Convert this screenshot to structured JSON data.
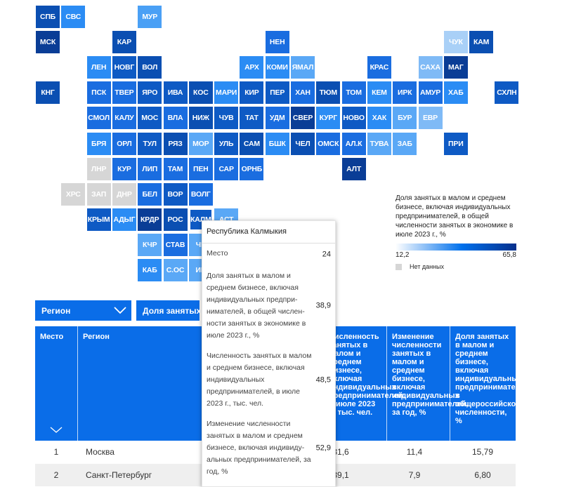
{
  "map": {
    "tiles": [
      {
        "label": "СПБ",
        "color": "#0b4fb2",
        "selected": false
      },
      {
        "label": "СВС",
        "color": "#2b8cf4",
        "selected": false
      },
      {
        "label": "МУР",
        "color": "#4aa0f5",
        "selected": false
      },
      {
        "label": "МСК",
        "color": "#0a3d96",
        "selected": false
      },
      {
        "label": "КАР",
        "color": "#0b4fb2",
        "selected": false
      },
      {
        "label": "НЕН",
        "color": "#1a6de0",
        "selected": false
      },
      {
        "label": "ЧУК",
        "color": "#a9d0f7",
        "selected": false
      },
      {
        "label": "КАМ",
        "color": "#0b4fb2",
        "selected": false
      },
      {
        "label": "ЛЕН",
        "color": "#2b8cf4",
        "selected": false
      },
      {
        "label": "НОВГ",
        "color": "#0e5ac4",
        "selected": false
      },
      {
        "label": "ВОЛ",
        "color": "#0b4fb2",
        "selected": false
      },
      {
        "label": "АРХ",
        "color": "#2b8cf4",
        "selected": false
      },
      {
        "label": "КОМИ",
        "color": "#2b8cf4",
        "selected": false
      },
      {
        "label": "ЯМАЛ",
        "color": "#5aa8f6",
        "selected": false
      },
      {
        "label": "КРАС",
        "color": "#1a6de0",
        "selected": false
      },
      {
        "label": "САХА",
        "color": "#7fbaf6",
        "selected": false
      },
      {
        "label": "МАГ",
        "color": "#0a3d96",
        "selected": false
      },
      {
        "label": "КНГ",
        "color": "#0b4fb2",
        "selected": false
      },
      {
        "label": "ПСК",
        "color": "#1a6de0",
        "selected": false
      },
      {
        "label": "ТВЕР",
        "color": "#1a6de0",
        "selected": false
      },
      {
        "label": "ЯРО",
        "color": "#0e5ac4",
        "selected": false
      },
      {
        "label": "ИВА",
        "color": "#0e5ac4",
        "selected": false
      },
      {
        "label": "КОС",
        "color": "#0b4fb2",
        "selected": false
      },
      {
        "label": "МАРИ",
        "color": "#2b8cf4",
        "selected": false
      },
      {
        "label": "КИР",
        "color": "#0e5ac4",
        "selected": false
      },
      {
        "label": "ПЕР",
        "color": "#0e5ac4",
        "selected": false
      },
      {
        "label": "ХАН",
        "color": "#1a6de0",
        "selected": false
      },
      {
        "label": "ТЮМ",
        "color": "#0b4fb2",
        "selected": false
      },
      {
        "label": "ТОМ",
        "color": "#1a6de0",
        "selected": false
      },
      {
        "label": "КЕМ",
        "color": "#2b8cf4",
        "selected": false
      },
      {
        "label": "ИРК",
        "color": "#1a6de0",
        "selected": false
      },
      {
        "label": "АМУР",
        "color": "#1a6de0",
        "selected": false
      },
      {
        "label": "ХАБ",
        "color": "#2b8cf4",
        "selected": false
      },
      {
        "label": "СХЛН",
        "color": "#0e5ac4",
        "selected": false
      },
      {
        "label": "СМОЛ",
        "color": "#1a6de0",
        "selected": false
      },
      {
        "label": "КАЛУ",
        "color": "#1a6de0",
        "selected": false
      },
      {
        "label": "МОС",
        "color": "#0e5ac4",
        "selected": false
      },
      {
        "label": "ВЛА",
        "color": "#1a6de0",
        "selected": false
      },
      {
        "label": "НИЖ",
        "color": "#0b4fb2",
        "selected": false
      },
      {
        "label": "ЧУВ",
        "color": "#0e5ac4",
        "selected": false
      },
      {
        "label": "ТАТ",
        "color": "#0e5ac4",
        "selected": false
      },
      {
        "label": "УДМ",
        "color": "#1a6de0",
        "selected": false
      },
      {
        "label": "СВЕР",
        "color": "#0a3d96",
        "selected": false
      },
      {
        "label": "КУРГ",
        "color": "#2b8cf4",
        "selected": false
      },
      {
        "label": "НОВО",
        "color": "#0e5ac4",
        "selected": false
      },
      {
        "label": "ХАК",
        "color": "#2b8cf4",
        "selected": false
      },
      {
        "label": "БУР",
        "color": "#5aa8f6",
        "selected": false
      },
      {
        "label": "ЕВР",
        "color": "#7fbaf6",
        "selected": false
      },
      {
        "label": "БРЯ",
        "color": "#2b8cf4",
        "selected": false
      },
      {
        "label": "ОРЛ",
        "color": "#1a6de0",
        "selected": false
      },
      {
        "label": "ТУЛ",
        "color": "#0e5ac4",
        "selected": false
      },
      {
        "label": "РЯЗ",
        "color": "#0b4fb2",
        "selected": false
      },
      {
        "label": "МОР",
        "color": "#5aa8f6",
        "selected": false
      },
      {
        "label": "УЛЬ",
        "color": "#0e5ac4",
        "selected": false
      },
      {
        "label": "САМ",
        "color": "#0b4fb2",
        "selected": false
      },
      {
        "label": "БШК",
        "color": "#2b8cf4",
        "selected": false
      },
      {
        "label": "ЧЕЛ",
        "color": "#0b4fb2",
        "selected": false
      },
      {
        "label": "ОМСК",
        "color": "#1a6de0",
        "selected": false
      },
      {
        "label": "АЛ.К",
        "color": "#1a6de0",
        "selected": false
      },
      {
        "label": "ТУВА",
        "color": "#5aa8f6",
        "selected": false
      },
      {
        "label": "ЗАБ",
        "color": "#5aa8f6",
        "selected": false
      },
      {
        "label": "ПРИ",
        "color": "#0e5ac4",
        "selected": false
      },
      {
        "label": "ЛНР",
        "color": "#d6d6d6",
        "selected": false
      },
      {
        "label": "КУР",
        "color": "#1a6de0",
        "selected": false
      },
      {
        "label": "ЛИП",
        "color": "#1a6de0",
        "selected": false
      },
      {
        "label": "ТАМ",
        "color": "#1a6de0",
        "selected": false
      },
      {
        "label": "ПЕН",
        "color": "#1a6de0",
        "selected": false
      },
      {
        "label": "САР",
        "color": "#1a6de0",
        "selected": false
      },
      {
        "label": "ОРНБ",
        "color": "#1a6de0",
        "selected": false
      },
      {
        "label": "АЛТ",
        "color": "#0a3d96",
        "selected": false
      },
      {
        "label": "ХРС",
        "color": "#d6d6d6",
        "selected": false
      },
      {
        "label": "ЗАП",
        "color": "#d6d6d6",
        "selected": false
      },
      {
        "label": "ДНР",
        "color": "#d6d6d6",
        "selected": false
      },
      {
        "label": "БЕЛ",
        "color": "#1a6de0",
        "selected": false
      },
      {
        "label": "ВОР",
        "color": "#0e5ac4",
        "selected": false
      },
      {
        "label": "ВОЛГ",
        "color": "#1a6de0",
        "selected": false
      },
      {
        "label": "КРЫМ",
        "color": "#0e5ac4",
        "selected": false
      },
      {
        "label": "АДЫГ",
        "color": "#2b8cf4",
        "selected": false
      },
      {
        "label": "КРДР",
        "color": "#0a3d96",
        "selected": false
      },
      {
        "label": "РОС",
        "color": "#0b4fb2",
        "selected": false
      },
      {
        "label": "КАЛМ",
        "color": "#0e5ac4",
        "selected": true
      },
      {
        "label": "АСТ",
        "color": "#5aa8f6",
        "selected": false
      },
      {
        "label": "КЧР",
        "color": "#5aa8f6",
        "selected": false
      },
      {
        "label": "СТАВ",
        "color": "#1a6de0",
        "selected": false
      },
      {
        "label": "ЧЕ",
        "color": "#5aa8f6",
        "selected": false
      },
      {
        "label": "КАБ",
        "color": "#2b8cf4",
        "selected": false
      },
      {
        "label": "С.ОС",
        "color": "#5aa8f6",
        "selected": false
      },
      {
        "label": "ИН",
        "color": "#5aa8f6",
        "selected": false
      }
    ]
  },
  "legend": {
    "title": "Доля занятых в малом и среднем бизнесе, включая индивидуальных предпринимателей, в общей численности занятых в экономике в июле 2023 г., %",
    "min": "12,2",
    "max": "65,8",
    "nodata": "Нет данных",
    "nodata_color": "#d6d6d6"
  },
  "controls": {
    "region_label": "Регион",
    "metric_label": "Доля занятых в м"
  },
  "table": {
    "headers": [
      "Место",
      "Регион",
      "Численность занятых в малом и среднем бизнесе, включая индивидуальных предпринимателей, в июле 2023 г., тыс. чел.",
      "Изменение численности занятых в малом и среднем бизнесе, включая индивидуальных предпринимателей, за год, %",
      "Доля занятых в малом и среднем бизнесе, включая индивидуальных предпринимателей, в общероссийской численности, %"
    ],
    "rows": [
      {
        "rank": "1",
        "region": "Москва",
        "v1": "4731,6",
        "v2": "11,4",
        "v3": "15,79"
      },
      {
        "rank": "2",
        "region": "Санкт-Петербург",
        "v1": "2039,1",
        "v2": "7,9",
        "v3": "6,80"
      }
    ]
  },
  "tooltip": {
    "title": "Республика Калмыкия",
    "rows": [
      {
        "label": "Место",
        "value": "24"
      },
      {
        "label": "Доля занятых в малом и среднем бизнесе, включая индивидуальных предпри­нимателей, в общей числен­ности занятых в экономике в июле 2023 г., %",
        "value": "38,9"
      },
      {
        "label": "Численность занятых в ма­лом и среднем бизнесе, включая индивидуальных предпринимателей, в июле 2023 г., тыс. чел.",
        "value": "48,5"
      },
      {
        "label": "Изменение численности занятых в малом и среднем бизнесе, включая индивиду­альных предпринимателей, за год, %",
        "value": "52,9"
      }
    ]
  },
  "colors": {
    "accent": "#0a6de8",
    "row_alt": "#efefef"
  }
}
